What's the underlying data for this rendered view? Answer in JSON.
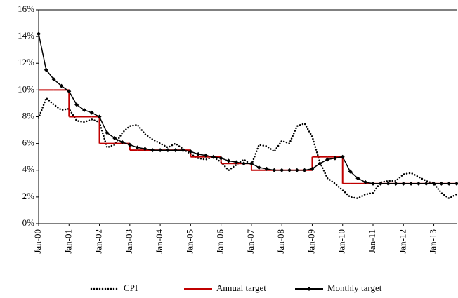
{
  "chart_data": {
    "type": "line",
    "categories": [
      "Jan-00",
      null,
      null,
      null,
      "Jan-01",
      null,
      null,
      null,
      "Jan-02",
      null,
      null,
      null,
      "Jan-03",
      null,
      null,
      null,
      "Jan-04",
      null,
      null,
      null,
      "Jan-05",
      null,
      null,
      null,
      "Jan-06",
      null,
      null,
      null,
      "Jan-07",
      null,
      null,
      null,
      "Jan-08",
      null,
      null,
      null,
      "Jan-09",
      null,
      null,
      null,
      "Jan-10",
      null,
      null,
      null,
      "Jan-11",
      null,
      null,
      null,
      "Jan-12",
      null,
      null,
      null,
      "Jan-13",
      null,
      null,
      null
    ],
    "series": [
      {
        "name": "CPI",
        "color": "#000000",
        "dash": "dotted",
        "values": [
          7.9,
          9.4,
          8.9,
          8.5,
          8.6,
          7.7,
          7.6,
          7.8,
          7.6,
          5.7,
          5.9,
          6.8,
          7.3,
          7.4,
          6.7,
          6.3,
          6.0,
          5.7,
          6.0,
          5.6,
          5.2,
          4.9,
          4.8,
          5.0,
          4.6,
          4.0,
          4.4,
          4.8,
          4.4,
          5.9,
          5.8,
          5.4,
          6.2,
          6.0,
          7.3,
          7.5,
          6.5,
          4.6,
          3.4,
          3.0,
          2.5,
          2.0,
          1.9,
          2.2,
          2.3,
          3.1,
          3.2,
          3.2,
          3.7,
          3.8,
          3.5,
          3.2,
          3.0,
          2.3,
          1.9,
          2.2
        ]
      },
      {
        "name": "Annual target",
        "color": "#c00000",
        "step": true,
        "values": [
          10,
          10,
          10,
          10,
          8,
          8,
          8,
          8,
          6,
          6,
          6,
          6,
          5.5,
          5.5,
          5.5,
          5.5,
          5.5,
          5.5,
          5.5,
          5.5,
          5,
          5,
          5,
          5,
          4.5,
          4.5,
          4.5,
          4.5,
          4,
          4,
          4,
          4,
          4,
          4,
          4,
          4,
          5,
          5,
          5,
          5,
          3,
          3,
          3,
          3,
          3,
          3,
          3,
          3,
          3,
          3,
          3,
          3,
          3,
          3,
          3,
          3
        ]
      },
      {
        "name": "Monthly target",
        "color": "#000000",
        "marker": "diamond",
        "values": [
          14.2,
          11.5,
          10.8,
          10.3,
          9.9,
          8.9,
          8.5,
          8.3,
          8.0,
          6.8,
          6.4,
          6.1,
          5.9,
          5.7,
          5.6,
          5.5,
          5.5,
          5.5,
          5.5,
          5.5,
          5.4,
          5.2,
          5.1,
          5.0,
          4.9,
          4.7,
          4.6,
          4.5,
          4.5,
          4.2,
          4.1,
          4.0,
          4.0,
          4.0,
          4.0,
          4.0,
          4.1,
          4.5,
          4.8,
          4.9,
          5.0,
          3.9,
          3.4,
          3.1,
          3.0,
          3.0,
          3.0,
          3.0,
          3,
          3,
          3,
          3,
          3,
          3,
          3,
          3
        ]
      }
    ],
    "ylim": [
      0,
      16
    ],
    "yticks": [
      {
        "value": 0,
        "label": "0%"
      },
      {
        "value": 2,
        "label": "2%"
      },
      {
        "value": 4,
        "label": "4%"
      },
      {
        "value": 6,
        "label": "6%"
      },
      {
        "value": 8,
        "label": "8%"
      },
      {
        "value": 10,
        "label": "10%"
      },
      {
        "value": 12,
        "label": "12%"
      },
      {
        "value": 14,
        "label": "14%"
      },
      {
        "value": 16,
        "label": "16%"
      }
    ],
    "grid": false,
    "legend": "bottom"
  }
}
